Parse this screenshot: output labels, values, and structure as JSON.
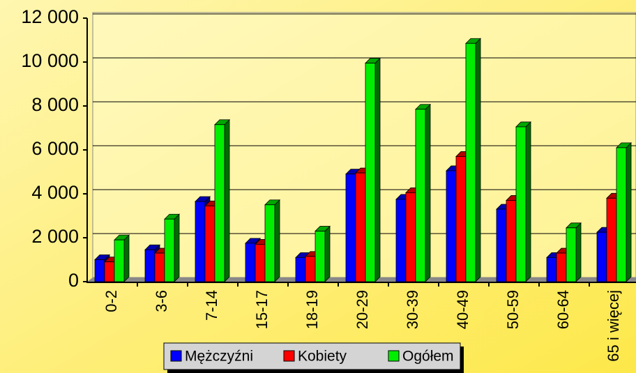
{
  "chart_data": {
    "type": "bar",
    "categories": [
      "0-2",
      "3-6",
      "7-14",
      "15-17",
      "18-19",
      "20-29",
      "30-39",
      "40-49",
      "50-59",
      "60-64",
      "65 i więcej"
    ],
    "series": [
      {
        "name": "Mężczyźni",
        "color": "#0000ff",
        "values": [
          1000,
          1450,
          3650,
          1750,
          1100,
          4900,
          3750,
          5050,
          3300,
          1100,
          2250
        ]
      },
      {
        "name": "Kobiety",
        "color": "#ff0000",
        "values": [
          900,
          1300,
          3450,
          1700,
          1150,
          4950,
          4050,
          5700,
          3700,
          1300,
          3800
        ]
      },
      {
        "name": "Ogółem",
        "color": "#00ee00",
        "values": [
          1900,
          2850,
          7150,
          3500,
          2300,
          9950,
          7850,
          10850,
          7050,
          2450,
          6100
        ]
      }
    ],
    "ylim": [
      0,
      12000
    ],
    "yticks": [
      0,
      {
        "value": 2000,
        "label": "2 000"
      },
      {
        "value": 4000,
        "label": "4 000"
      },
      {
        "value": 6000,
        "label": "6 000"
      },
      {
        "value": 8000,
        "label": "8 000"
      },
      {
        "value": 10000,
        "label": "10 000"
      },
      {
        "value": 12000,
        "label": "12 000"
      }
    ],
    "grid": true
  }
}
